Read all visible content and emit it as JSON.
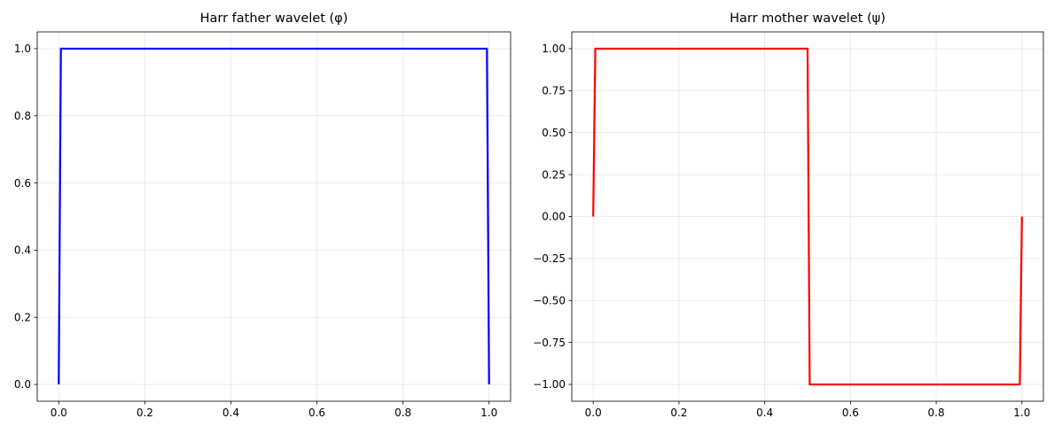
{
  "chart_data": [
    {
      "type": "line",
      "title": "Harr father wavelet (φ)",
      "xlabel": "",
      "ylabel": "",
      "xlim": [
        -0.05,
        1.05
      ],
      "ylim": [
        -0.05,
        1.05
      ],
      "xticks": [
        0.0,
        0.2,
        0.4,
        0.6,
        0.8,
        1.0
      ],
      "xtick_labels": [
        "0.0",
        "0.2",
        "0.4",
        "0.6",
        "0.8",
        "1.0"
      ],
      "yticks": [
        0.0,
        0.2,
        0.4,
        0.6,
        0.8,
        1.0
      ],
      "ytick_labels": [
        "0.0",
        "0.2",
        "0.4",
        "0.6",
        "0.8",
        "1.0"
      ],
      "grid": true,
      "series": [
        {
          "color": "#0000ff",
          "x": [
            0.0,
            0.005,
            0.995,
            1.0
          ],
          "y": [
            0.0,
            1.0,
            1.0,
            0.0
          ]
        }
      ]
    },
    {
      "type": "line",
      "title": "Harr mother wavelet (ψ)",
      "xlabel": "",
      "ylabel": "",
      "xlim": [
        -0.05,
        1.05
      ],
      "ylim": [
        -1.1,
        1.1
      ],
      "xticks": [
        0.0,
        0.2,
        0.4,
        0.6,
        0.8,
        1.0
      ],
      "xtick_labels": [
        "0.0",
        "0.2",
        "0.4",
        "0.6",
        "0.8",
        "1.0"
      ],
      "yticks": [
        -1.0,
        -0.75,
        -0.5,
        -0.25,
        0.0,
        0.25,
        0.5,
        0.75,
        1.0
      ],
      "ytick_labels": [
        "−1.00",
        "−0.75",
        "−0.50",
        "−0.25",
        "0.00",
        "0.25",
        "0.50",
        "0.75",
        "1.00"
      ],
      "grid": true,
      "series": [
        {
          "color": "#ff0000",
          "x": [
            0.0,
            0.005,
            0.5,
            0.505,
            0.995,
            1.0
          ],
          "y": [
            0.0,
            1.0,
            1.0,
            -1.0,
            -1.0,
            0.0
          ]
        }
      ]
    }
  ]
}
